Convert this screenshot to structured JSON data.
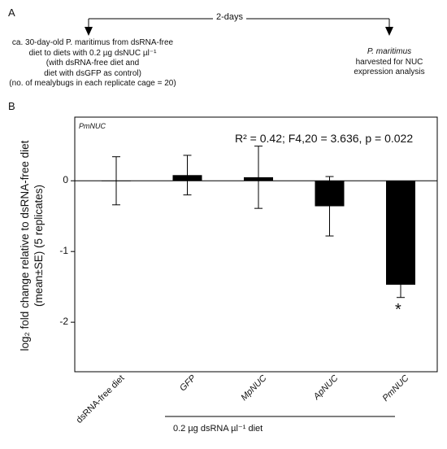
{
  "panel_a": {
    "letter": "A",
    "duration": "2-days",
    "left_note": [
      "ca. 30-day-old P. maritimus from dsRNA-free",
      "diet  to diets with 0.2 µg dsNUC µl⁻¹",
      "(with dsRNA-free diet and",
      "diet with dsGFP as control)",
      "(no. of mealybugs in each replicate cage = 20)"
    ],
    "right_note": [
      "P. maritimus",
      "harvested for NUC",
      "expression analysis"
    ]
  },
  "panel_b": {
    "letter": "B",
    "corner_label": "PmNUC",
    "stat_text": "R² = 0.42; F4,20 = 3.636, p = 0.022",
    "ylabel_line1": "log₂ fold change relative to dsRNA-free diet",
    "ylabel_line2": "(mean±SE) (5 replicates)",
    "group_label": "0.2 µg dsRNA µl⁻¹ diet",
    "significance_marker": "*"
  },
  "chart_data": {
    "type": "bar",
    "categories": [
      "dsRNA-free diet",
      "GFP",
      "MpNUC",
      "ApNUC",
      "PmNUC"
    ],
    "values": [
      0.0,
      0.08,
      0.05,
      -0.36,
      -1.47
    ],
    "error": [
      0.34,
      0.28,
      0.44,
      0.42,
      0.18
    ],
    "ylim": [
      -2.7,
      0.9
    ],
    "yticks": [
      0,
      -1,
      -2
    ],
    "ytick_labels": [
      "0",
      "-1",
      "-2"
    ],
    "significant": [
      false,
      false,
      false,
      false,
      true
    ],
    "bar_color": "#000000"
  }
}
